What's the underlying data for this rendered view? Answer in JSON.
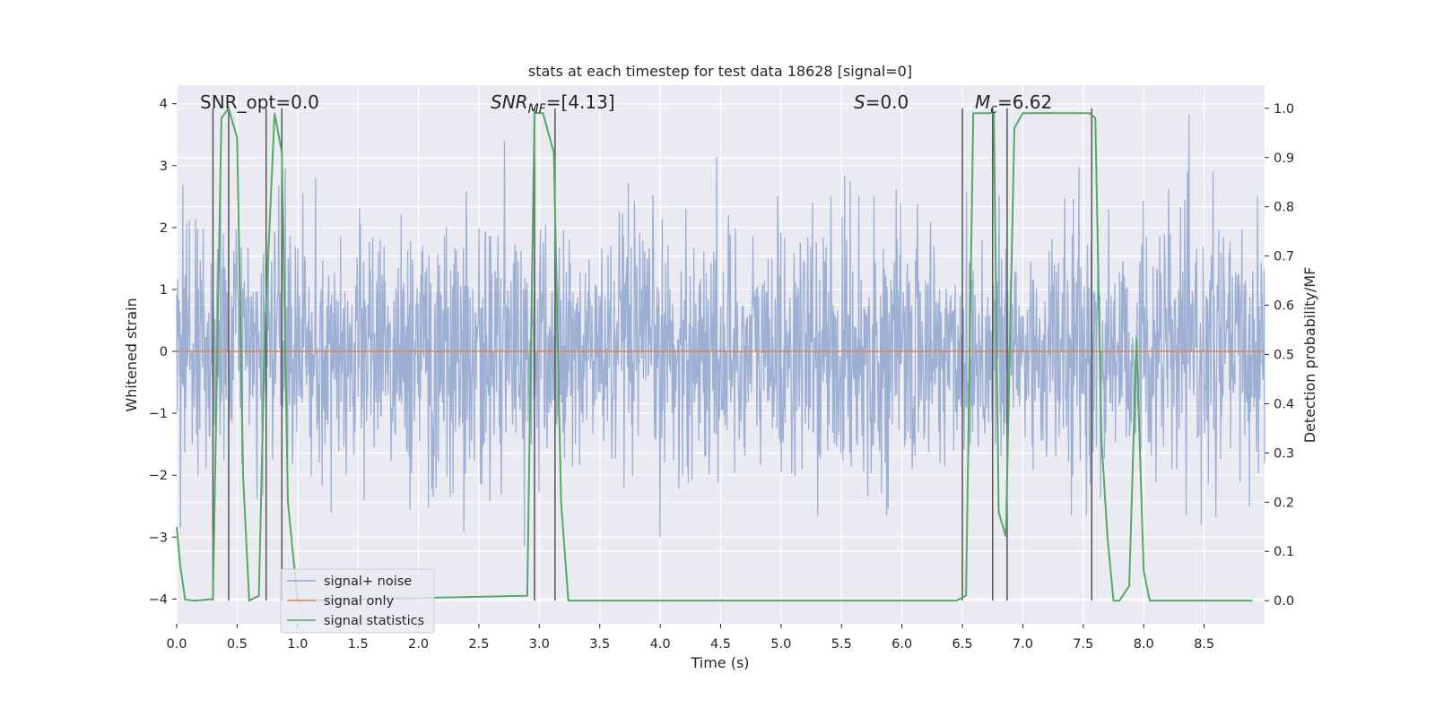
{
  "chart_data": {
    "type": "line",
    "title": "stats at each timestep for test data 18628 [signal=0]",
    "xlabel": "Time (s)",
    "ylabel_left": "Whitened strain",
    "ylabel_right": "Detection probability/MF",
    "xlim": [
      0,
      9.0
    ],
    "ylim_left": [
      -4.4,
      4.3
    ],
    "ylim_right": [
      -0.047,
      1.047
    ],
    "x_ticks": [
      0,
      0.5,
      1,
      1.5,
      2,
      2.5,
      3,
      3.5,
      4,
      4.5,
      5,
      5.5,
      6,
      6.5,
      7,
      7.5,
      8,
      8.5
    ],
    "x_tick_labels": [
      "0.0",
      "0.5",
      "1.0",
      "1.5",
      "2.0",
      "2.5",
      "3.0",
      "3.5",
      "4.0",
      "4.5",
      "5.0",
      "5.5",
      "6.0",
      "6.5",
      "7.0",
      "7.5",
      "8.0",
      "8.5"
    ],
    "y_left_ticks": [
      4,
      3,
      2,
      1,
      0,
      -1,
      -2,
      -3,
      -4
    ],
    "y_left_tick_labels": [
      "4",
      "3",
      "2",
      "1",
      "0",
      "−1",
      "−2",
      "−3",
      "−4"
    ],
    "y_right_ticks": [
      1.0,
      0.9,
      0.8,
      0.7,
      0.6,
      0.5,
      0.4,
      0.3,
      0.2,
      0.1,
      0.0
    ],
    "y_right_tick_labels": [
      "1.0",
      "0.9",
      "0.8",
      "0.7",
      "0.6",
      "0.5",
      "0.4",
      "0.3",
      "0.2",
      "0.1",
      "0.0"
    ],
    "grid": true,
    "legend_position": "lower-left",
    "annotations": {
      "snr_opt": "SNR_opt=0.0",
      "snr_mf_main": "SNR",
      "snr_mf_sub": "MF",
      "snr_mf_val": "=[4.13]",
      "s_main": "S",
      "s_val": "=0.0",
      "mc_main": "M",
      "mc_sub": "c",
      "mc_val": "=6.62"
    },
    "series": [
      {
        "name": "signal+ noise",
        "color": "#8fa4cc",
        "axis": "left",
        "noise_std": 1.0,
        "sample_count": 2304
      },
      {
        "name": "signal only",
        "color": "#dd8452",
        "axis": "left",
        "constant": 0
      },
      {
        "name": "signal statistics",
        "color": "#55a868",
        "axis": "right",
        "x": [
          0.0,
          0.03,
          0.07,
          0.15,
          0.3,
          0.37,
          0.43,
          0.5,
          0.55,
          0.6,
          0.68,
          0.73,
          0.81,
          0.87,
          0.92,
          1.0,
          2.9,
          2.96,
          3.03,
          3.12,
          3.18,
          3.24,
          3.3,
          3.5,
          6.45,
          6.53,
          6.59,
          6.7,
          6.76,
          6.8,
          6.86,
          6.93,
          7.0,
          7.55,
          7.6,
          7.65,
          7.7,
          7.75,
          7.8,
          7.88,
          7.94,
          8.0,
          8.05,
          8.1,
          8.9
        ],
        "y": [
          0.15,
          0.07,
          0.002,
          0.0,
          0.003,
          0.98,
          1.0,
          0.94,
          0.25,
          0.0,
          0.01,
          0.55,
          0.99,
          0.91,
          0.2,
          0.0,
          0.01,
          0.99,
          0.99,
          0.91,
          0.2,
          0.0,
          0.0,
          0.0,
          0.0,
          0.01,
          0.99,
          0.99,
          0.99,
          0.18,
          0.13,
          0.96,
          0.99,
          0.99,
          0.98,
          0.33,
          0.13,
          0.0,
          0.0,
          0.03,
          0.53,
          0.06,
          0.0,
          0.0,
          0.0
        ]
      }
    ],
    "vertical_markers_x": [
      0.3,
      0.43,
      0.74,
      0.87,
      2.96,
      3.13,
      6.5,
      6.75,
      6.87,
      7.57
    ]
  }
}
